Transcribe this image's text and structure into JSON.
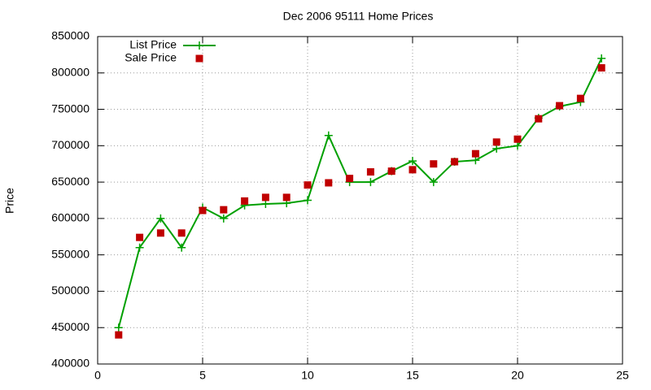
{
  "chart_data": {
    "type": "line",
    "title": "Dec 2006 95111 Home Prices",
    "y_label": "Price",
    "x": [
      1,
      2,
      3,
      4,
      5,
      6,
      7,
      8,
      9,
      10,
      11,
      12,
      13,
      14,
      15,
      16,
      17,
      18,
      19,
      20,
      21,
      22,
      23,
      24
    ],
    "series": [
      {
        "name": "List Price",
        "color": "#00a000",
        "marker": "plus",
        "line": true,
        "values": [
          450000,
          560000,
          600000,
          560000,
          615000,
          600000,
          618000,
          620000,
          621000,
          625000,
          714000,
          650000,
          650000,
          665000,
          679000,
          650000,
          678000,
          680000,
          696000,
          700000,
          738000,
          754000,
          760000,
          820000
        ]
      },
      {
        "name": "Sale Price",
        "color": "#c00000",
        "marker": "square",
        "line": false,
        "values": [
          440000,
          574000,
          580000,
          580000,
          611000,
          612000,
          624000,
          629000,
          629000,
          646000,
          649000,
          655000,
          664000,
          665000,
          667000,
          675000,
          678000,
          689000,
          705000,
          709000,
          737000,
          755000,
          765000,
          807000
        ]
      }
    ],
    "xlim": [
      0,
      25
    ],
    "xticks": [
      0,
      5,
      10,
      15,
      20,
      25
    ],
    "ylim": [
      400000,
      850000
    ],
    "yticks": [
      400000,
      450000,
      500000,
      550000,
      600000,
      650000,
      700000,
      750000,
      800000,
      850000
    ],
    "grid": true,
    "legend": "top-left"
  }
}
